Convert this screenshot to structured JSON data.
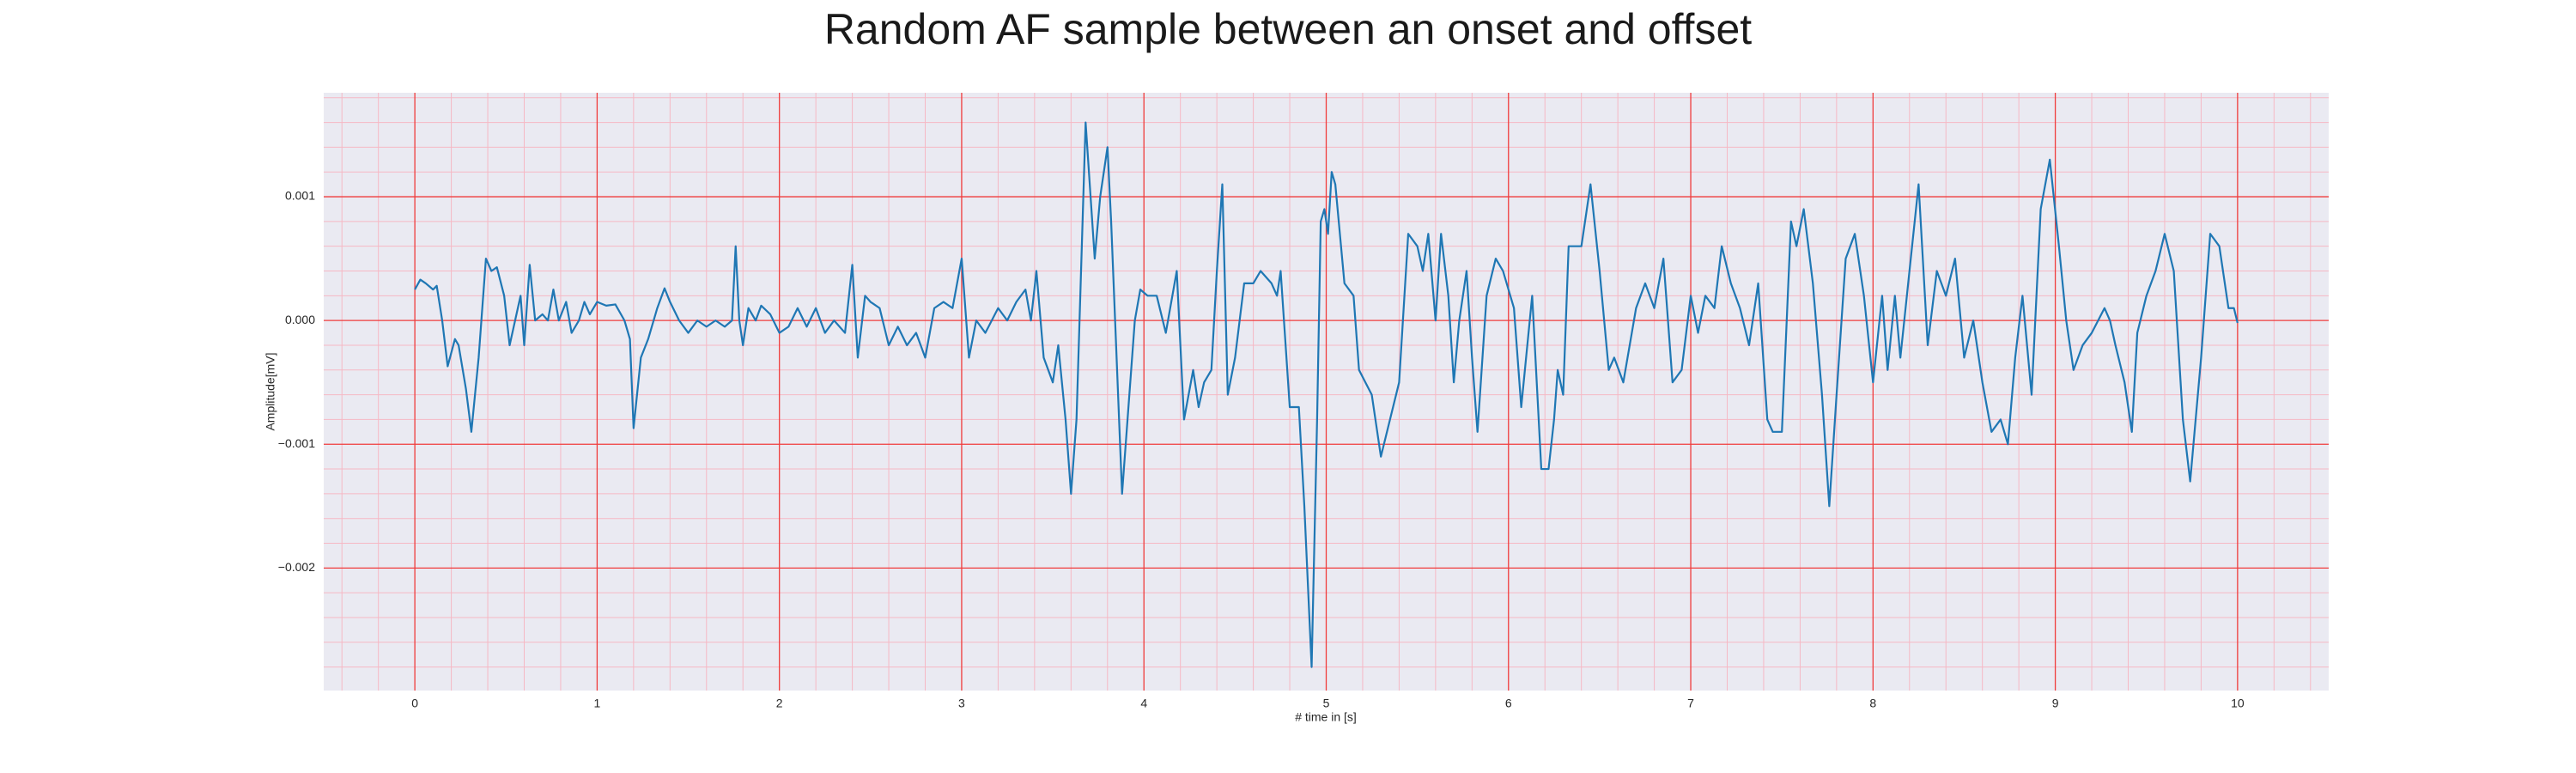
{
  "chart_data": {
    "type": "line",
    "title": "Random AF sample between an onset and offset",
    "xlabel": "# time in [s]",
    "ylabel": "Amplitude[mV]",
    "color": "#1f77b4",
    "background": "#eaeaf2",
    "grid": true,
    "grid_color": "#f03c3c",
    "minor_grid_color": "#f6b8c4",
    "xlim": [
      -0.5,
      10.5
    ],
    "ylim": [
      -0.00299,
      0.00184
    ],
    "xticks": [
      0,
      1,
      2,
      3,
      4,
      5,
      6,
      7,
      8,
      9,
      10
    ],
    "yticks": [
      {
        "value": -0.002,
        "label": "−0.002"
      },
      {
        "value": -0.001,
        "label": "−0.001"
      },
      {
        "value": 0,
        "label": "0.000"
      },
      0.001
    ],
    "xminorticks": [
      -0.4,
      -0.2,
      0.2,
      0.4,
      0.6,
      0.8,
      1.2,
      1.4,
      1.6,
      1.8,
      2.2,
      2.4,
      2.6,
      2.8,
      3.2,
      3.4,
      3.6,
      3.8,
      4.2,
      4.4,
      4.6,
      4.8,
      5.2,
      5.4,
      5.6,
      5.8,
      6.2,
      6.4,
      6.6,
      6.8,
      7.2,
      7.4,
      7.6,
      7.8,
      8.2,
      8.4,
      8.6,
      8.8,
      9.2,
      9.4,
      9.6,
      9.8,
      10.2,
      10.4
    ],
    "yminorticks": [
      -0.0028,
      -0.0026,
      -0.0024,
      -0.0022,
      -0.0018,
      -0.0016,
      -0.0014,
      -0.0012,
      -0.0008,
      -0.0006,
      -0.0004,
      -0.0002,
      0.0002,
      0.0004,
      0.0006,
      0.0008,
      0.0012,
      0.0014,
      0.0016,
      0.0018
    ],
    "x": [
      0,
      0.03,
      0.06,
      0.1,
      0.12,
      0.15,
      0.18,
      0.22,
      0.24,
      0.28,
      0.31,
      0.35,
      0.39,
      0.42,
      0.45,
      0.49,
      0.52,
      0.55,
      0.58,
      0.6,
      0.63,
      0.66,
      0.7,
      0.73,
      0.76,
      0.79,
      0.83,
      0.86,
      0.9,
      0.93,
      0.96,
      1.0,
      1.05,
      1.1,
      1.15,
      1.18,
      1.2,
      1.24,
      1.28,
      1.33,
      1.37,
      1.4,
      1.45,
      1.5,
      1.55,
      1.6,
      1.65,
      1.7,
      1.74,
      1.76,
      1.78,
      1.8,
      1.83,
      1.87,
      1.9,
      1.95,
      2.0,
      2.05,
      2.1,
      2.15,
      2.2,
      2.25,
      2.3,
      2.36,
      2.4,
      2.43,
      2.47,
      2.5,
      2.55,
      2.6,
      2.65,
      2.7,
      2.75,
      2.8,
      2.85,
      2.9,
      2.95,
      3.0,
      3.04,
      3.08,
      3.13,
      3.2,
      3.25,
      3.3,
      3.35,
      3.38,
      3.41,
      3.45,
      3.5,
      3.53,
      3.57,
      3.6,
      3.63,
      3.68,
      3.73,
      3.76,
      3.8,
      3.82,
      3.88,
      3.91,
      3.95,
      3.98,
      4.02,
      4.07,
      4.12,
      4.18,
      4.22,
      4.27,
      4.3,
      4.33,
      4.37,
      4.4,
      4.43,
      4.46,
      4.5,
      4.55,
      4.6,
      4.64,
      4.7,
      4.73,
      4.75,
      4.8,
      4.85,
      4.88,
      4.92,
      4.95,
      4.97,
      4.99,
      5.01,
      5.03,
      5.05,
      5.1,
      5.15,
      5.18,
      5.25,
      5.3,
      5.35,
      5.4,
      5.45,
      5.5,
      5.53,
      5.56,
      5.6,
      5.63,
      5.67,
      5.7,
      5.73,
      5.77,
      5.8,
      5.83,
      5.88,
      5.93,
      5.97,
      6.03,
      6.07,
      6.13,
      6.18,
      6.22,
      6.25,
      6.27,
      6.3,
      6.33,
      6.4,
      6.45,
      6.5,
      6.55,
      6.58,
      6.63,
      6.7,
      6.75,
      6.8,
      6.85,
      6.9,
      6.95,
      7.0,
      7.04,
      7.08,
      7.13,
      7.17,
      7.22,
      7.27,
      7.32,
      7.37,
      7.42,
      7.45,
      7.5,
      7.55,
      7.58,
      7.62,
      7.67,
      7.72,
      7.76,
      7.8,
      7.85,
      7.9,
      7.95,
      8.0,
      8.05,
      8.08,
      8.12,
      8.15,
      8.2,
      8.25,
      8.3,
      8.35,
      8.4,
      8.45,
      8.5,
      8.55,
      8.6,
      8.65,
      8.7,
      8.74,
      8.78,
      8.82,
      8.87,
      8.92,
      8.97,
      9.02,
      9.06,
      9.1,
      9.15,
      9.2,
      9.27,
      9.3,
      9.33,
      9.38,
      9.42,
      9.45,
      9.5,
      9.55,
      9.6,
      9.65,
      9.7,
      9.74,
      9.8,
      9.85,
      9.9,
      9.95,
      9.98,
      10.0
    ],
    "values": [
      0.00025,
      0.00033,
      0.0003,
      0.00025,
      0.00028,
      0,
      -0.00037,
      -0.00015,
      -0.0002,
      -0.00055,
      -0.0009,
      -0.0003,
      0.0005,
      0.0004,
      0.00043,
      0.0002,
      -0.0002,
      0,
      0.0002,
      -0.0002,
      0.00045,
      0,
      5e-05,
      0,
      0.00025,
      0,
      0.00015,
      -0.0001,
      0,
      0.00015,
      5e-05,
      0.00015,
      0.00012,
      0.00013,
      0,
      -0.00015,
      -0.00087,
      -0.0003,
      -0.00015,
      0.0001,
      0.00026,
      0.00015,
      0,
      -0.0001,
      0,
      -5e-05,
      0,
      -5e-05,
      0,
      0.0006,
      0,
      -0.0002,
      0.0001,
      0,
      0.00012,
      5e-05,
      -0.0001,
      -5e-05,
      0.0001,
      -5e-05,
      0.0001,
      -0.0001,
      0,
      -0.0001,
      0.00045,
      -0.0003,
      0.0002,
      0.00015,
      0.0001,
      -0.0002,
      -5e-05,
      -0.0002,
      -0.0001,
      -0.0003,
      0.0001,
      0.00015,
      0.0001,
      0.0005,
      -0.0003,
      0,
      -0.0001,
      0.0001,
      0,
      0.00015,
      0.00025,
      0,
      0.0004,
      -0.0003,
      -0.0005,
      -0.0002,
      -0.0008,
      -0.0014,
      -0.0008,
      0.0016,
      0.0005,
      0.001,
      0.0014,
      0.0008,
      -0.0014,
      -0.0008,
      0,
      0.00025,
      0.0002,
      0.0002,
      -0.0001,
      0.0004,
      -0.0008,
      -0.0004,
      -0.0007,
      -0.0005,
      -0.0004,
      0.0004,
      0.0011,
      -0.0006,
      -0.0003,
      0.0003,
      0.0003,
      0.0004,
      0.0003,
      0.0002,
      0.0004,
      -0.0007,
      -0.0007,
      -0.0015,
      -0.0028,
      -0.0008,
      0.0008,
      0.0009,
      0.0007,
      0.0012,
      0.0011,
      0.0003,
      0.0002,
      -0.0004,
      -0.0006,
      -0.0011,
      -0.0008,
      -0.0005,
      0.0007,
      0.0006,
      0.0004,
      0.0007,
      0,
      0.0007,
      0.0002,
      -0.0005,
      0,
      0.0004,
      -0.0003,
      -0.0009,
      0.0002,
      0.0005,
      0.0004,
      0.0001,
      -0.0007,
      0.0002,
      -0.0012,
      -0.0012,
      -0.0008,
      -0.0004,
      -0.0006,
      0.0006,
      0.0006,
      0.0011,
      0.0004,
      -0.0004,
      -0.0003,
      -0.0005,
      0.0001,
      0.0003,
      0.0001,
      0.0005,
      -0.0005,
      -0.0004,
      0.0002,
      -0.0001,
      0.0002,
      0.0001,
      0.0006,
      0.0003,
      0.0001,
      -0.0002,
      0.0003,
      -0.0008,
      -0.0009,
      -0.0009,
      0.0008,
      0.0006,
      0.0009,
      0.0003,
      -0.0006,
      -0.0015,
      -0.0006,
      0.0005,
      0.0007,
      0.0002,
      -0.0005,
      0.0002,
      -0.0004,
      0.0002,
      -0.0003,
      0.0004,
      0.0011,
      -0.0002,
      0.0004,
      0.0002,
      0.0005,
      -0.0003,
      0,
      -0.0005,
      -0.0009,
      -0.0008,
      -0.001,
      -0.0003,
      0.0002,
      -0.0006,
      0.0009,
      0.0013,
      0.0006,
      0,
      -0.0004,
      -0.0002,
      -0.0001,
      0.0001,
      0,
      -0.0002,
      -0.0005,
      -0.0009,
      -0.0001,
      0.0002,
      0.0004,
      0.0007,
      0.0004,
      -0.0008,
      -0.0013,
      -0.0003,
      0.0007,
      0.0006,
      0.0001,
      0.0001,
      -2e-05
    ]
  }
}
